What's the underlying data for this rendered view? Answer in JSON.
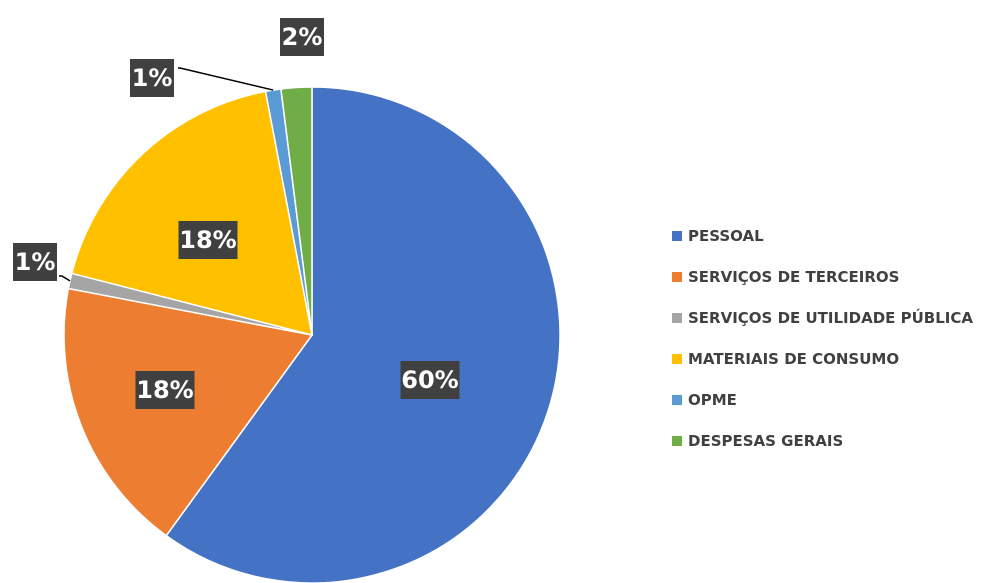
{
  "chart_data": {
    "type": "pie",
    "categories": [
      "PESSOAL",
      "SERVIÇOS DE TERCEIROS",
      "SERVIÇOS DE UTILIDADE PÚBLICA",
      "MATERIAIS DE CONSUMO",
      "OPME",
      "DESPESAS GERAIS"
    ],
    "values": [
      60,
      18,
      1,
      18,
      1,
      2
    ],
    "value_labels": [
      "60%",
      "18%",
      "1%",
      "18%",
      "1%",
      "2%"
    ],
    "colors": [
      "#4472c4",
      "#ed7d31",
      "#a5a5a5",
      "#ffc000",
      "#5b9bd5",
      "#70ad47"
    ],
    "legend": "right"
  }
}
